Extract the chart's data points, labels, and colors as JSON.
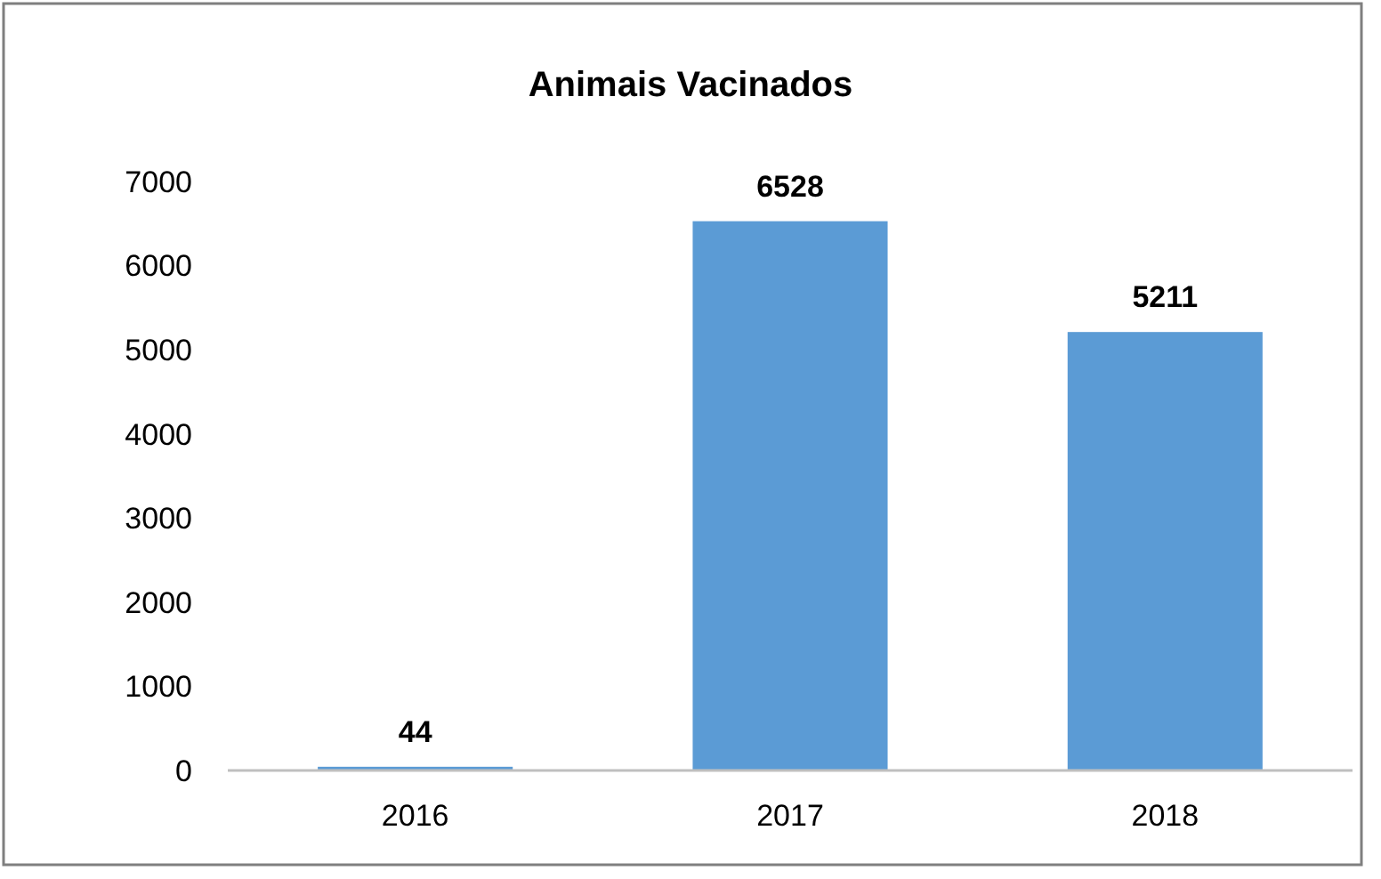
{
  "chart_data": {
    "type": "bar",
    "title": "Animais Vacinados",
    "categories": [
      "2016",
      "2017",
      "2018"
    ],
    "values": [
      44,
      6528,
      5211
    ],
    "color": "#5b9bd5",
    "ylim": [
      0,
      7000
    ],
    "yticks": [
      0,
      1000,
      2000,
      3000,
      4000,
      5000,
      6000,
      7000
    ],
    "data_labels": true
  }
}
